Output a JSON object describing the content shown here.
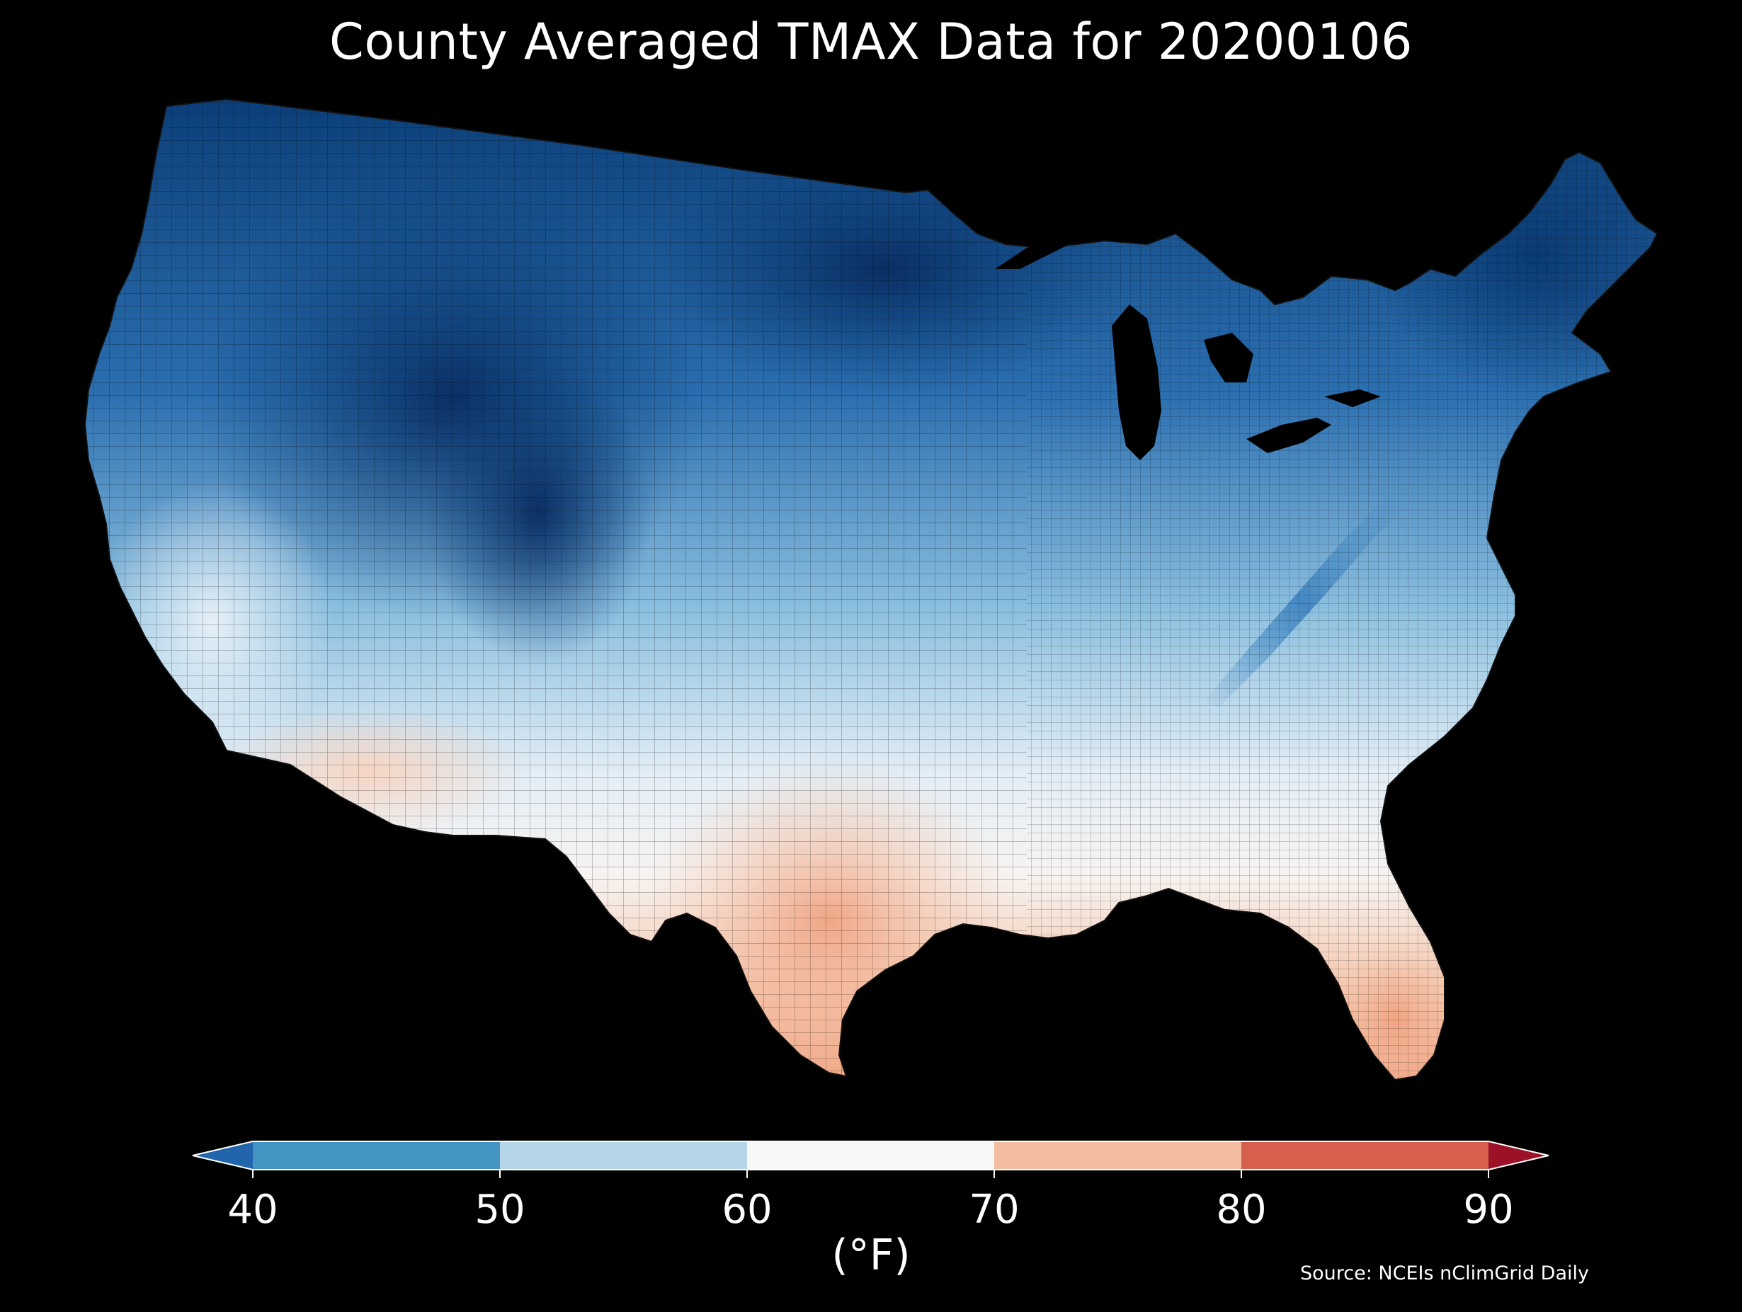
{
  "title": "County Averaged TMAX Data for 20200106",
  "colorbar": {
    "label": "(°F)",
    "ticks": [
      "40",
      "50",
      "60",
      "70",
      "80",
      "90"
    ],
    "bins": [
      {
        "from": null,
        "to": 40,
        "color": "#2166ac"
      },
      {
        "from": 40,
        "to": 50,
        "color": "#4393c3"
      },
      {
        "from": 50,
        "to": 60,
        "color": "#b4d6e8"
      },
      {
        "from": 60,
        "to": 70,
        "color": "#f7f7f7"
      },
      {
        "from": 70,
        "to": 80,
        "color": "#f5bda0"
      },
      {
        "from": 80,
        "to": 90,
        "color": "#d6604d"
      },
      {
        "from": 90,
        "to": null,
        "color": "#9c1127"
      }
    ]
  },
  "source": "Source: NCEIs nClimGrid Daily",
  "map": {
    "region": "Contiguous United States counties",
    "variable": "TMAX",
    "colors": {
      "coldest": "#08306b",
      "cold": "#2166ac",
      "cool": "#6baed6",
      "mild": "#deebf7",
      "warm": "#fbd7c4",
      "hot": "#f2a482"
    }
  }
}
